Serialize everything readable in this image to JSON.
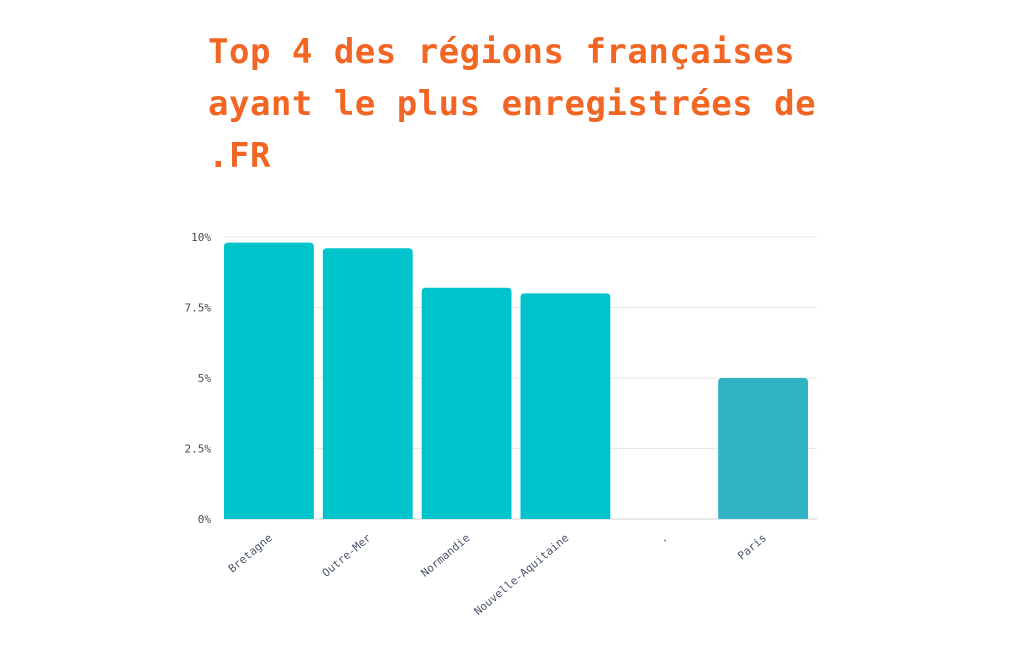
{
  "title": "Top 4 des régions françaises ayant le plus enregistrées de .FR",
  "colors": {
    "title": "#f26522",
    "bar_primary": "#00c4cc",
    "bar_highlight": "#30b4c4",
    "grid": "#e8e8e8",
    "axis": "#d0d0d0"
  },
  "chart_data": {
    "type": "bar",
    "categories": [
      "Bretagne",
      "Outre-Mer",
      "Normandie",
      "Nouvelle-Aquitaine",
      ".",
      "Paris"
    ],
    "values": [
      9.8,
      9.6,
      8.2,
      8.0,
      null,
      5.0
    ],
    "y_tick_labels": [
      "0%",
      "2.5%",
      "5%",
      "7.5%",
      "10%"
    ],
    "y_ticks": [
      0,
      2.5,
      5,
      7.5,
      10
    ],
    "ylim": [
      0,
      10
    ],
    "grid": true,
    "legend": "none",
    "highlight_category": "Paris"
  }
}
